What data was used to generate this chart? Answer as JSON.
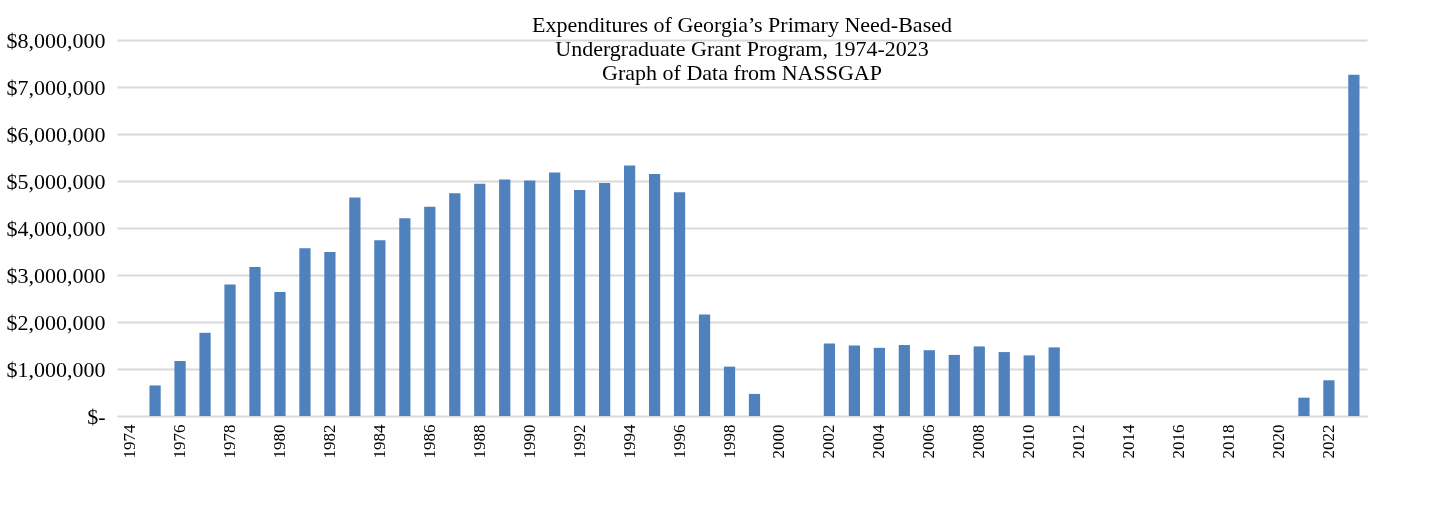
{
  "chart_data": {
    "type": "bar",
    "title": "Expenditures of Georgia’s Primary Need-Based\nUndergraduate Grant Program, 1974-2023\nGraph of Data from NASSGAP",
    "categories": [
      "1974",
      null,
      "1976",
      null,
      "1978",
      null,
      "1980",
      null,
      "1982",
      null,
      "1984",
      null,
      "1986",
      null,
      "1988",
      null,
      "1990",
      null,
      "1992",
      null,
      "1994",
      null,
      "1996",
      null,
      "1998",
      null,
      "2000",
      null,
      "2002",
      null,
      "2004",
      null,
      "2006",
      null,
      "2008",
      null,
      "2010",
      null,
      "2012",
      null,
      "2014",
      null,
      "2016",
      null,
      "2018",
      null,
      "2020",
      null,
      "2022",
      null
    ],
    "values": [
      null,
      650000,
      1170000,
      1770000,
      2800000,
      3170000,
      2640000,
      3570000,
      3490000,
      4650000,
      3740000,
      4210000,
      4450000,
      4740000,
      4940000,
      5030000,
      5010000,
      5180000,
      4810000,
      4960000,
      5330000,
      5150000,
      4760000,
      2160000,
      1050000,
      470000,
      null,
      null,
      1540000,
      1500000,
      1450000,
      1510000,
      1400000,
      1300000,
      1480000,
      1360000,
      1290000,
      1460000,
      null,
      null,
      null,
      null,
      null,
      null,
      null,
      null,
      null,
      390000,
      760000,
      7260000
    ],
    "color": "#4f81bd",
    "ylim": [
      0,
      8000000
    ],
    "yticks": [
      {
        "value": 0,
        "label": "$-"
      },
      {
        "value": 1000000,
        "label": "$1,000,000"
      },
      {
        "value": 2000000,
        "label": "$2,000,000"
      },
      {
        "value": 3000000,
        "label": "$3,000,000"
      },
      {
        "value": 4000000,
        "label": "$4,000,000"
      },
      {
        "value": 5000000,
        "label": "$5,000,000"
      },
      {
        "value": 6000000,
        "label": "$6,000,000"
      },
      {
        "value": 7000000,
        "label": "$7,000,000"
      },
      {
        "value": 8000000,
        "label": "$8,000,000"
      }
    ],
    "grid": "y"
  }
}
